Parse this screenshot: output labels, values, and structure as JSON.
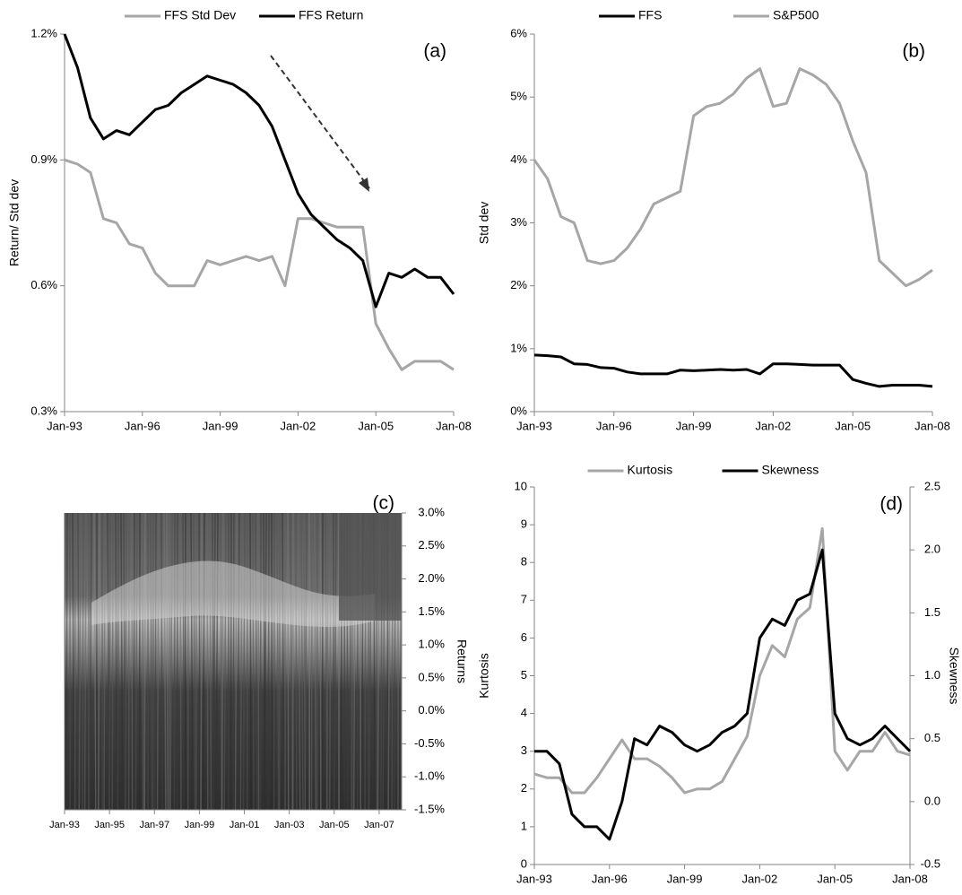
{
  "chart_data": [
    {
      "type": "line",
      "annotation": "(a)",
      "y_label": "Return/ Std dev",
      "x": [
        "1993-01",
        "1993-07",
        "1994-01",
        "1994-07",
        "1995-01",
        "1995-07",
        "1996-01",
        "1996-07",
        "1997-01",
        "1997-07",
        "1998-01",
        "1998-07",
        "1999-01",
        "1999-07",
        "2000-01",
        "2000-07",
        "2001-01",
        "2001-07",
        "2002-01",
        "2002-07",
        "2003-01",
        "2003-07",
        "2004-01",
        "2004-07",
        "2005-01",
        "2005-07",
        "2006-01",
        "2006-07",
        "2007-01",
        "2007-07",
        "2008-01"
      ],
      "xlim": [
        "1993-01",
        "2008-01"
      ],
      "xticks": [
        {
          "value": "1993-01",
          "label": "Jan-93"
        },
        {
          "value": "1996-01",
          "label": "Jan-96"
        },
        {
          "value": "1999-01",
          "label": "Jan-99"
        },
        {
          "value": "2002-01",
          "label": "Jan-02"
        },
        {
          "value": "2005-01",
          "label": "Jan-05"
        },
        {
          "value": "2008-01",
          "label": "Jan-08"
        }
      ],
      "ylim": [
        0.3,
        1.2
      ],
      "yticks": [
        {
          "value": 0.3,
          "label": "0.3%"
        },
        {
          "value": 0.6,
          "label": "0.6%"
        },
        {
          "value": 0.9,
          "label": "0.9%"
        },
        {
          "value": 1.2,
          "label": "1.2%"
        }
      ],
      "series": [
        {
          "name": "FFS Std Dev",
          "color": "#a6a6a6",
          "values": [
            0.9,
            0.89,
            0.87,
            0.76,
            0.75,
            0.7,
            0.69,
            0.63,
            0.6,
            0.6,
            0.6,
            0.66,
            0.65,
            0.66,
            0.67,
            0.66,
            0.67,
            0.6,
            0.76,
            0.76,
            0.75,
            0.74,
            0.74,
            0.74,
            0.51,
            0.45,
            0.4,
            0.42,
            0.42,
            0.42,
            0.4
          ]
        },
        {
          "name": "FFS Return",
          "color": "#000000",
          "values": [
            1.2,
            1.12,
            1.0,
            0.95,
            0.97,
            0.96,
            0.99,
            1.02,
            1.03,
            1.06,
            1.08,
            1.1,
            1.09,
            1.08,
            1.06,
            1.03,
            0.98,
            0.9,
            0.82,
            0.77,
            0.74,
            0.71,
            0.69,
            0.66,
            0.55,
            0.63,
            0.62,
            0.64,
            0.62,
            0.62,
            0.58
          ]
        }
      ]
    },
    {
      "type": "line",
      "annotation": "(b)",
      "y_label": "Std dev",
      "x": [
        "1993-01",
        "1993-07",
        "1994-01",
        "1994-07",
        "1995-01",
        "1995-07",
        "1996-01",
        "1996-07",
        "1997-01",
        "1997-07",
        "1998-01",
        "1998-07",
        "1999-01",
        "1999-07",
        "2000-01",
        "2000-07",
        "2001-01",
        "2001-07",
        "2002-01",
        "2002-07",
        "2003-01",
        "2003-07",
        "2004-01",
        "2004-07",
        "2005-01",
        "2005-07",
        "2006-01",
        "2006-07",
        "2007-01",
        "2007-07",
        "2008-01"
      ],
      "xlim": [
        "1993-01",
        "2008-01"
      ],
      "xticks": [
        {
          "value": "1993-01",
          "label": "Jan-93"
        },
        {
          "value": "1996-01",
          "label": "Jan-96"
        },
        {
          "value": "1999-01",
          "label": "Jan-99"
        },
        {
          "value": "2002-01",
          "label": "Jan-02"
        },
        {
          "value": "2005-01",
          "label": "Jan-05"
        },
        {
          "value": "2008-01",
          "label": "Jan-08"
        }
      ],
      "ylim": [
        0,
        6
      ],
      "yticks": [
        {
          "value": 0,
          "label": "0%"
        },
        {
          "value": 1,
          "label": "1%"
        },
        {
          "value": 2,
          "label": "2%"
        },
        {
          "value": 3,
          "label": "3%"
        },
        {
          "value": 4,
          "label": "4%"
        },
        {
          "value": 5,
          "label": "5%"
        },
        {
          "value": 6,
          "label": "6%"
        }
      ],
      "series": [
        {
          "name": "FFS",
          "color": "#000000",
          "values": [
            0.9,
            0.89,
            0.87,
            0.76,
            0.75,
            0.7,
            0.69,
            0.63,
            0.6,
            0.6,
            0.6,
            0.66,
            0.65,
            0.66,
            0.67,
            0.66,
            0.67,
            0.6,
            0.76,
            0.76,
            0.75,
            0.74,
            0.74,
            0.74,
            0.51,
            0.45,
            0.4,
            0.42,
            0.42,
            0.42,
            0.4
          ]
        },
        {
          "name": "S&P500",
          "color": "#a6a6a6",
          "values": [
            4.0,
            3.7,
            3.1,
            3.0,
            2.4,
            2.35,
            2.4,
            2.6,
            2.9,
            3.3,
            3.4,
            3.5,
            4.7,
            4.85,
            4.9,
            5.05,
            5.3,
            5.45,
            4.85,
            4.9,
            5.45,
            5.35,
            5.2,
            4.9,
            4.3,
            3.8,
            2.4,
            2.2,
            2.0,
            2.1,
            2.25
          ]
        }
      ]
    },
    {
      "type": "surface",
      "annotation": "(c)",
      "y_label": "Returns",
      "xlim": [
        "1993-01",
        "2008-01"
      ],
      "xticks": [
        {
          "value": "1993-01",
          "label": "Jan-93"
        },
        {
          "value": "1995-01",
          "label": "Jan-95"
        },
        {
          "value": "1997-01",
          "label": "Jan-97"
        },
        {
          "value": "1999-01",
          "label": "Jan-99"
        },
        {
          "value": "2001-01",
          "label": "Jan-01"
        },
        {
          "value": "2003-01",
          "label": "Jan-03"
        },
        {
          "value": "2005-01",
          "label": "Jan-05"
        },
        {
          "value": "2007-01",
          "label": "Jan-07"
        }
      ],
      "ylim": [
        -1.5,
        3.0
      ],
      "yticks": [
        {
          "value": 3.0,
          "label": "3.0%"
        },
        {
          "value": 2.5,
          "label": "2.5%"
        },
        {
          "value": 2.0,
          "label": "2.0%"
        },
        {
          "value": 1.5,
          "label": "1.5%"
        },
        {
          "value": 1.0,
          "label": "1.0%"
        },
        {
          "value": 0.5,
          "label": "0.5%"
        },
        {
          "value": 0.0,
          "label": "0.0%"
        },
        {
          "value": -0.5,
          "label": "-0.5%"
        },
        {
          "value": -1.0,
          "label": "-1.0%"
        },
        {
          "value": -1.5,
          "label": "-1.5%"
        }
      ]
    },
    {
      "type": "line",
      "annotation": "(d)",
      "y_label": "Kurtosis",
      "y2_label": "Skewness",
      "x": [
        "1993-01",
        "1993-07",
        "1994-01",
        "1994-07",
        "1995-01",
        "1995-07",
        "1996-01",
        "1996-07",
        "1997-01",
        "1997-07",
        "1998-01",
        "1998-07",
        "1999-01",
        "1999-07",
        "2000-01",
        "2000-07",
        "2001-01",
        "2001-07",
        "2002-01",
        "2002-07",
        "2003-01",
        "2003-07",
        "2004-01",
        "2004-07",
        "2005-01",
        "2005-07",
        "2006-01",
        "2006-07",
        "2007-01",
        "2007-07",
        "2008-01"
      ],
      "xlim": [
        "1993-01",
        "2008-01"
      ],
      "xticks": [
        {
          "value": "1993-01",
          "label": "Jan-93"
        },
        {
          "value": "1996-01",
          "label": "Jan-96"
        },
        {
          "value": "1999-01",
          "label": "Jan-99"
        },
        {
          "value": "2002-01",
          "label": "Jan-02"
        },
        {
          "value": "2005-01",
          "label": "Jan-05"
        },
        {
          "value": "2008-01",
          "label": "Jan-08"
        }
      ],
      "ylim": [
        0,
        10
      ],
      "yticks": [
        0,
        1,
        2,
        3,
        4,
        5,
        6,
        7,
        8,
        9,
        10
      ],
      "y2lim": [
        -0.5,
        2.5
      ],
      "y2ticks": [
        -0.5,
        {
          "value": 0.0,
          "label": "0.0"
        },
        0.5,
        {
          "value": 1.0,
          "label": "1.0"
        },
        1.5,
        {
          "value": 2.0,
          "label": "2.0"
        },
        2.5
      ],
      "series": [
        {
          "name": "Kurtosis",
          "color": "#a6a6a6",
          "values": [
            2.4,
            2.3,
            2.3,
            1.9,
            1.9,
            2.3,
            2.8,
            3.3,
            2.8,
            2.8,
            2.6,
            2.3,
            1.9,
            2.0,
            2.0,
            2.2,
            2.8,
            3.4,
            5.0,
            5.8,
            5.5,
            6.5,
            6.8,
            8.9,
            3.0,
            2.5,
            3.0,
            3.0,
            3.5,
            3.0,
            2.9
          ]
        },
        {
          "name": "Skewness",
          "color": "#000000",
          "axis": "y2",
          "values": [
            0.4,
            0.4,
            0.3,
            -0.1,
            -0.2,
            -0.2,
            -0.3,
            0.0,
            0.5,
            0.45,
            0.6,
            0.55,
            0.45,
            0.4,
            0.45,
            0.55,
            0.6,
            0.7,
            1.3,
            1.45,
            1.4,
            1.6,
            1.65,
            2.0,
            0.7,
            0.5,
            0.45,
            0.5,
            0.6,
            0.5,
            0.4
          ]
        }
      ]
    }
  ]
}
